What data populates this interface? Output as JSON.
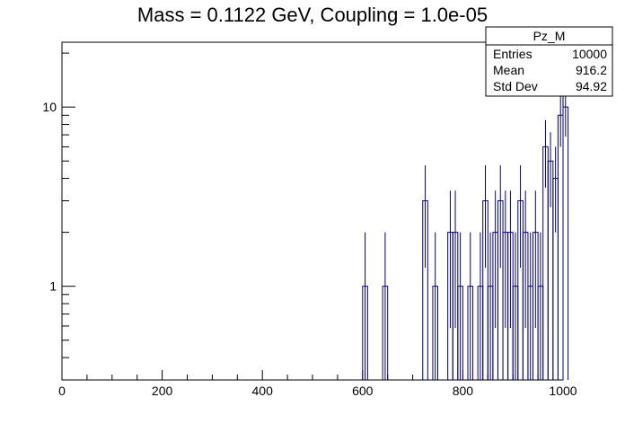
{
  "chart_data": {
    "type": "bar",
    "title": "Mass = 0.1122 GeV, Coupling = 1.0e-05",
    "xlabel": "",
    "ylabel": "",
    "xlim": [
      0,
      1000
    ],
    "ylim": [
      0.3,
      23
    ],
    "log_y": true,
    "grid": false,
    "x_ticks": [
      0,
      200,
      400,
      600,
      800,
      1000
    ],
    "y_ticks": [
      1,
      10
    ],
    "line_color": "#000080",
    "bins": [
      {
        "x0": 600,
        "x1": 610,
        "y": 1
      },
      {
        "x0": 640,
        "x1": 650,
        "y": 1
      },
      {
        "x0": 720,
        "x1": 730,
        "y": 3
      },
      {
        "x0": 740,
        "x1": 750,
        "y": 1
      },
      {
        "x0": 770,
        "x1": 780,
        "y": 2
      },
      {
        "x0": 780,
        "x1": 790,
        "y": 2
      },
      {
        "x0": 790,
        "x1": 800,
        "y": 1
      },
      {
        "x0": 810,
        "x1": 820,
        "y": 1
      },
      {
        "x0": 830,
        "x1": 840,
        "y": 1
      },
      {
        "x0": 840,
        "x1": 850,
        "y": 3
      },
      {
        "x0": 850,
        "x1": 860,
        "y": 1
      },
      {
        "x0": 860,
        "x1": 870,
        "y": 2
      },
      {
        "x0": 870,
        "x1": 880,
        "y": 3
      },
      {
        "x0": 880,
        "x1": 890,
        "y": 2
      },
      {
        "x0": 890,
        "x1": 900,
        "y": 2
      },
      {
        "x0": 900,
        "x1": 910,
        "y": 1
      },
      {
        "x0": 910,
        "x1": 920,
        "y": 3
      },
      {
        "x0": 920,
        "x1": 930,
        "y": 2
      },
      {
        "x0": 930,
        "x1": 940,
        "y": 1
      },
      {
        "x0": 940,
        "x1": 950,
        "y": 2
      },
      {
        "x0": 950,
        "x1": 960,
        "y": 1
      },
      {
        "x0": 960,
        "x1": 970,
        "y": 6
      },
      {
        "x0": 970,
        "x1": 980,
        "y": 5
      },
      {
        "x0": 980,
        "x1": 990,
        "y": 4
      },
      {
        "x0": 990,
        "x1": 1000,
        "y": 9
      },
      {
        "x0": 1000,
        "x1": 1010,
        "y": 10
      }
    ],
    "stats": {
      "name": "Pz_M",
      "rows": [
        {
          "label": "Entries",
          "value": "10000"
        },
        {
          "label": "Mean",
          "value": "916.2"
        },
        {
          "label": "Std Dev",
          "value": "94.92"
        }
      ]
    }
  }
}
